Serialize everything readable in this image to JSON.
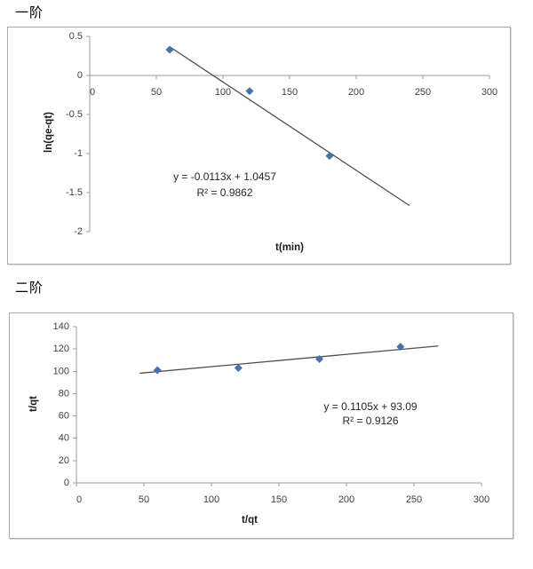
{
  "sections": [
    {
      "title": "一阶"
    },
    {
      "title": "二阶"
    }
  ],
  "chart_data": [
    {
      "type": "scatter",
      "title": "一阶",
      "xlabel": "t(min)",
      "ylabel": "ln(qe-qt)",
      "x": [
        60,
        120,
        180
      ],
      "y": [
        0.33,
        -0.2,
        -1.03
      ],
      "xlim": [
        0,
        300
      ],
      "ylim": [
        -2,
        0.5
      ],
      "xticks": [
        0,
        50,
        100,
        150,
        200,
        250,
        300
      ],
      "yticks": [
        0.5,
        0,
        -0.5,
        -1,
        -1.5,
        -2
      ],
      "grid": false,
      "legend": "none",
      "trendline": {
        "slope": -0.0113,
        "intercept": 1.0457,
        "x_start": 60,
        "x_end": 240
      },
      "annotations": {
        "equation": "y = -0.0113x + 1.0457",
        "r2": "R² = 0.9862"
      },
      "marker_color": "#4573A7",
      "trendline_color": "#4d4d4d",
      "axis_color": "#9e9e9e"
    },
    {
      "type": "scatter",
      "title": "二阶",
      "xlabel": "t/qt",
      "ylabel": "t/qt",
      "x": [
        60,
        120,
        180,
        240
      ],
      "y": [
        101,
        103,
        111,
        122
      ],
      "xlim": [
        0,
        300
      ],
      "ylim": [
        0,
        140
      ],
      "xticks": [
        0,
        50,
        100,
        150,
        200,
        250,
        300
      ],
      "yticks": [
        0,
        20,
        40,
        60,
        80,
        100,
        120,
        140
      ],
      "grid": false,
      "legend": "none",
      "trendline": {
        "slope": 0.1105,
        "intercept": 93.09,
        "x_start": 47,
        "x_end": 268
      },
      "annotations": {
        "equation": "y = 0.1105x + 93.09",
        "r2": "R² = 0.9126"
      },
      "marker_color": "#4573A7",
      "trendline_color": "#4d4d4d",
      "axis_color": "#9e9e9e"
    }
  ]
}
